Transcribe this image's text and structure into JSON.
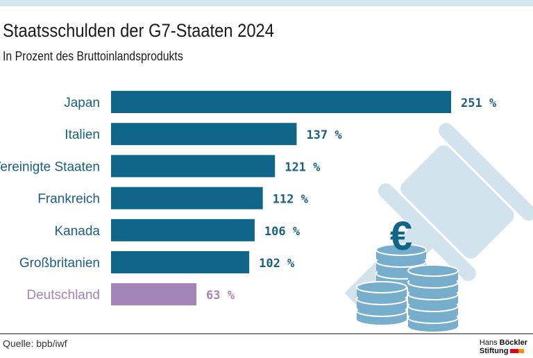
{
  "header": {
    "title": "Staatsschulden der G7-Staaten 2024",
    "subtitle": "In Prozent des Bruttoinlandsprodukts"
  },
  "footer": {
    "source": "Quelle: bpb/iwf",
    "logo_line1_a": "Hans",
    "logo_line1_b": "Böckler",
    "logo_line2": "Stiftung"
  },
  "colors": {
    "bar": "#0f6688",
    "highlight": "#a484b8",
    "label": "#1a5f82",
    "illustration_light": "#d3e3ee",
    "coins": "#76aecb"
  },
  "chart_data": {
    "type": "bar",
    "orientation": "horizontal",
    "title": "Staatsschulden der G7-Staaten 2024",
    "subtitle": "In Prozent des Bruttoinlandsprodukts",
    "categories": [
      "Japan",
      "Italien",
      "Vereinigte Staaten",
      "Frankreich",
      "Kanada",
      "Großbritanien",
      "Deutschland"
    ],
    "values": [
      251,
      137,
      121,
      112,
      106,
      102,
      63
    ],
    "value_labels": [
      "251 %",
      "137 %",
      "121 %",
      "112 %",
      "106 %",
      "102 %",
      "63 %"
    ],
    "highlight": "Deutschland",
    "unit": "%",
    "grid": false
  }
}
